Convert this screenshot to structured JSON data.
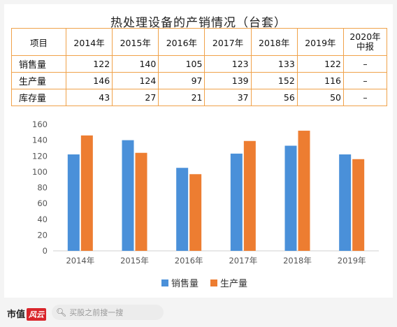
{
  "title": "热处理设备的产销情况（台套）",
  "table": {
    "header_first": "项目",
    "columns": [
      "2014年",
      "2015年",
      "2016年",
      "2017年",
      "2018年",
      "2019年"
    ],
    "last_col_line1": "2020年",
    "last_col_line2": "中报",
    "rows": [
      {
        "label": "销售量",
        "values": [
          "122",
          "140",
          "105",
          "123",
          "133",
          "122"
        ],
        "last": "–"
      },
      {
        "label": "生产量",
        "values": [
          "146",
          "124",
          "97",
          "139",
          "152",
          "116"
        ],
        "last": "–"
      },
      {
        "label": "库存量",
        "values": [
          "43",
          "27",
          "21",
          "37",
          "56",
          "50"
        ],
        "last": "–"
      }
    ]
  },
  "chart_data": {
    "type": "bar",
    "categories": [
      "2014年",
      "2015年",
      "2016年",
      "2017年",
      "2018年",
      "2019年"
    ],
    "series": [
      {
        "name": "销售量",
        "values": [
          122,
          140,
          105,
          123,
          133,
          122
        ],
        "color": "#4a90d9"
      },
      {
        "name": "生产量",
        "values": [
          146,
          124,
          97,
          139,
          152,
          116
        ],
        "color": "#ed7d31"
      }
    ],
    "ylim": [
      0,
      160
    ],
    "yticks": [
      0,
      20,
      40,
      60,
      80,
      100,
      120,
      140,
      160
    ],
    "grid": false,
    "legend_position": "bottom"
  },
  "footer": {
    "brand": "市值",
    "brand_mark": "风云",
    "search_placeholder": "买股之前搜一搜"
  }
}
